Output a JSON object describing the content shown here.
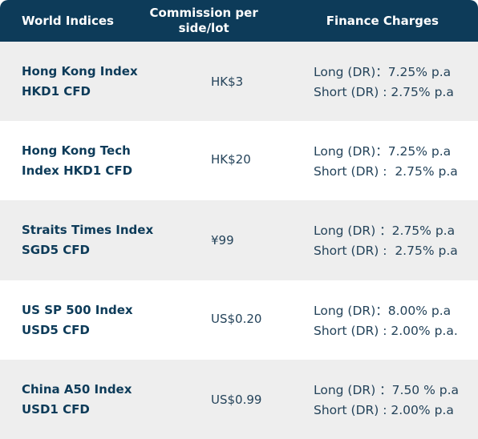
{
  "header": {
    "col1": "World Indices",
    "col2": "Commission per side/lot",
    "col3": "Finance Charges"
  },
  "rows": [
    {
      "name": "Hong Kong Index HKD1 CFD",
      "commission": "HK$3",
      "long": "Long (DR)：7.25% p.a",
      "short": "Short (DR) : 2.75% p.a"
    },
    {
      "name": "Hong Kong Tech Index HKD1 CFD",
      "commission": "HK$20",
      "long": "Long (DR)：7.25% p.a",
      "short": "Short (DR) :  2.75% p.a"
    },
    {
      "name": "Straits Times Index SGD5 CFD",
      "commission": "¥99",
      "long": "Long (DR) ：2.75% p.a",
      "short": "Short (DR) :  2.75% p.a"
    },
    {
      "name": "US SP 500 Index USD5 CFD",
      "commission": "US$0.20",
      "long": "Long (DR)：8.00% p.a",
      "short": "Short (DR) : 2.00% p.a."
    },
    {
      "name": "China A50 Index USD1 CFD",
      "commission": "US$0.99",
      "long": "Long (DR) ：7.50 % p.a",
      "short": "Short (DR) : 2.00% p.a"
    }
  ]
}
